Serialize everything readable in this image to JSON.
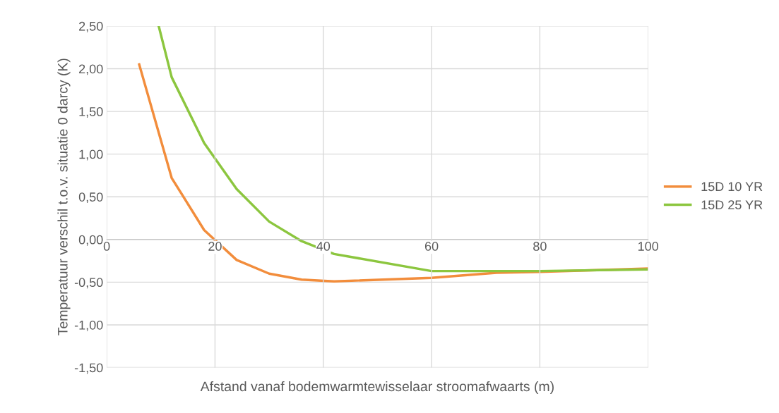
{
  "chart_data": {
    "type": "line",
    "xlabel": "Afstand vanaf bodemwarmtewisselaar stroomafwaarts (m)",
    "ylabel": "Temperatuur verschil t.o.v. situatie 0 darcy (K)",
    "xlim": [
      0,
      100
    ],
    "xticks": [
      0,
      20,
      40,
      60,
      80,
      100
    ],
    "ylim": [
      -1.5,
      2.5
    ],
    "yticks": [
      {
        "value": -1.5,
        "label": "-1,50"
      },
      {
        "value": -1.0,
        "label": "-1,00"
      },
      {
        "value": -0.5,
        "label": "-0,50"
      },
      {
        "value": 0,
        "label": "0,00"
      },
      {
        "value": 0.5,
        "label": "0,50"
      },
      {
        "value": 1.0,
        "label": "1,00"
      },
      {
        "value": 1.5,
        "label": "1,50"
      },
      {
        "value": 2.0,
        "label": "2,00"
      },
      {
        "value": 2.5,
        "label": "2,50"
      }
    ],
    "grid": true,
    "legend": "right",
    "marker": "none",
    "line_style": "solid",
    "series": [
      {
        "name": "15D 10 YR",
        "color": "#f28d3c",
        "x": [
          6,
          12,
          18,
          24,
          30,
          36,
          42,
          60,
          72,
          80,
          100
        ],
        "values": [
          2.05,
          0.72,
          0.11,
          -0.24,
          -0.4,
          -0.47,
          -0.49,
          -0.45,
          -0.39,
          -0.38,
          -0.34
        ]
      },
      {
        "name": "15D 25 YR",
        "color": "#8cc63f",
        "x": [
          9.6,
          12,
          18,
          24,
          30,
          36,
          42,
          60,
          80,
          100
        ],
        "values": [
          2.5,
          1.9,
          1.13,
          0.59,
          0.21,
          -0.02,
          -0.17,
          -0.37,
          -0.37,
          -0.35
        ]
      }
    ]
  }
}
